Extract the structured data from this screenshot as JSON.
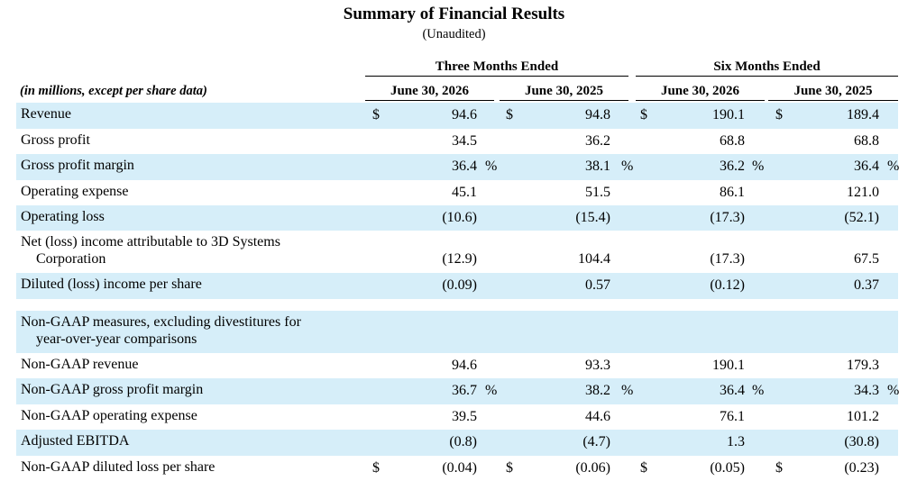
{
  "title": "Summary of Financial Results",
  "subtitle": "(Unaudited)",
  "unit_note": "(in millions, except per share data)",
  "groups": [
    "Three Months Ended",
    "Six Months Ended"
  ],
  "columns": [
    "June 30, 2026",
    "June 30, 2025",
    "June 30, 2026",
    "June 30, 2025"
  ],
  "rows": [
    {
      "label": [
        "Revenue"
      ],
      "shaded": true,
      "cells": [
        {
          "cur": "$",
          "val": "94.6"
        },
        {
          "cur": "$",
          "val": "94.8"
        },
        {
          "cur": "$",
          "val": "190.1"
        },
        {
          "cur": "$",
          "val": "189.4"
        }
      ]
    },
    {
      "label": [
        "Gross profit"
      ],
      "shaded": false,
      "cells": [
        {
          "val": "34.5"
        },
        {
          "val": "36.2"
        },
        {
          "val": "68.8"
        },
        {
          "val": "68.8"
        }
      ]
    },
    {
      "label": [
        "Gross profit margin"
      ],
      "shaded": true,
      "cells": [
        {
          "val": "36.4",
          "pct": "%"
        },
        {
          "val": "38.1",
          "pct": "%"
        },
        {
          "val": "36.2",
          "pct": "%"
        },
        {
          "val": "36.4",
          "pct": "%"
        }
      ]
    },
    {
      "label": [
        "Operating expense"
      ],
      "shaded": false,
      "cells": [
        {
          "val": "45.1"
        },
        {
          "val": "51.5"
        },
        {
          "val": "86.1"
        },
        {
          "val": "121.0"
        }
      ]
    },
    {
      "label": [
        "Operating loss"
      ],
      "shaded": true,
      "cells": [
        {
          "val": "(10.6)"
        },
        {
          "val": "(15.4)"
        },
        {
          "val": "(17.3)"
        },
        {
          "val": "(52.1)"
        }
      ]
    },
    {
      "label": [
        "Net (loss) income attributable to 3D Systems",
        "Corporation"
      ],
      "shaded": false,
      "cells": [
        {
          "val": "(12.9)"
        },
        {
          "val": "104.4"
        },
        {
          "val": "(17.3)"
        },
        {
          "val": "67.5"
        }
      ]
    },
    {
      "label": [
        "Diluted (loss) income per share"
      ],
      "shaded": true,
      "cells": [
        {
          "val": "(0.09)"
        },
        {
          "val": "0.57"
        },
        {
          "val": "(0.12)"
        },
        {
          "val": "0.37"
        }
      ]
    },
    {
      "label": [
        "Non-GAAP measures, excluding divestitures for",
        "year-over-year comparisons"
      ],
      "shaded": true,
      "cells": [
        {},
        {},
        {},
        {}
      ]
    },
    {
      "label": [
        "Non-GAAP revenue"
      ],
      "shaded": false,
      "cells": [
        {
          "val": "94.6"
        },
        {
          "val": "93.3"
        },
        {
          "val": "190.1"
        },
        {
          "val": "179.3"
        }
      ]
    },
    {
      "label": [
        "Non-GAAP gross profit margin"
      ],
      "shaded": true,
      "cells": [
        {
          "val": "36.7",
          "pct": "%"
        },
        {
          "val": "38.2",
          "pct": "%"
        },
        {
          "val": "36.4",
          "pct": "%"
        },
        {
          "val": "34.3",
          "pct": "%"
        }
      ]
    },
    {
      "label": [
        "Non-GAAP operating expense"
      ],
      "shaded": false,
      "cells": [
        {
          "val": "39.5"
        },
        {
          "val": "44.6"
        },
        {
          "val": "76.1"
        },
        {
          "val": "101.2"
        }
      ]
    },
    {
      "label": [
        "Adjusted EBITDA"
      ],
      "shaded": true,
      "cells": [
        {
          "val": "(0.8)"
        },
        {
          "val": "(4.7)"
        },
        {
          "val": "1.3"
        },
        {
          "val": "(30.8)"
        }
      ]
    },
    {
      "label": [
        "Non-GAAP diluted loss per share"
      ],
      "shaded": false,
      "cells": [
        {
          "cur": "$",
          "val": "(0.04)"
        },
        {
          "cur": "$",
          "val": "(0.06)"
        },
        {
          "cur": "$",
          "val": "(0.05)"
        },
        {
          "cur": "$",
          "val": "(0.23)"
        }
      ]
    }
  ]
}
